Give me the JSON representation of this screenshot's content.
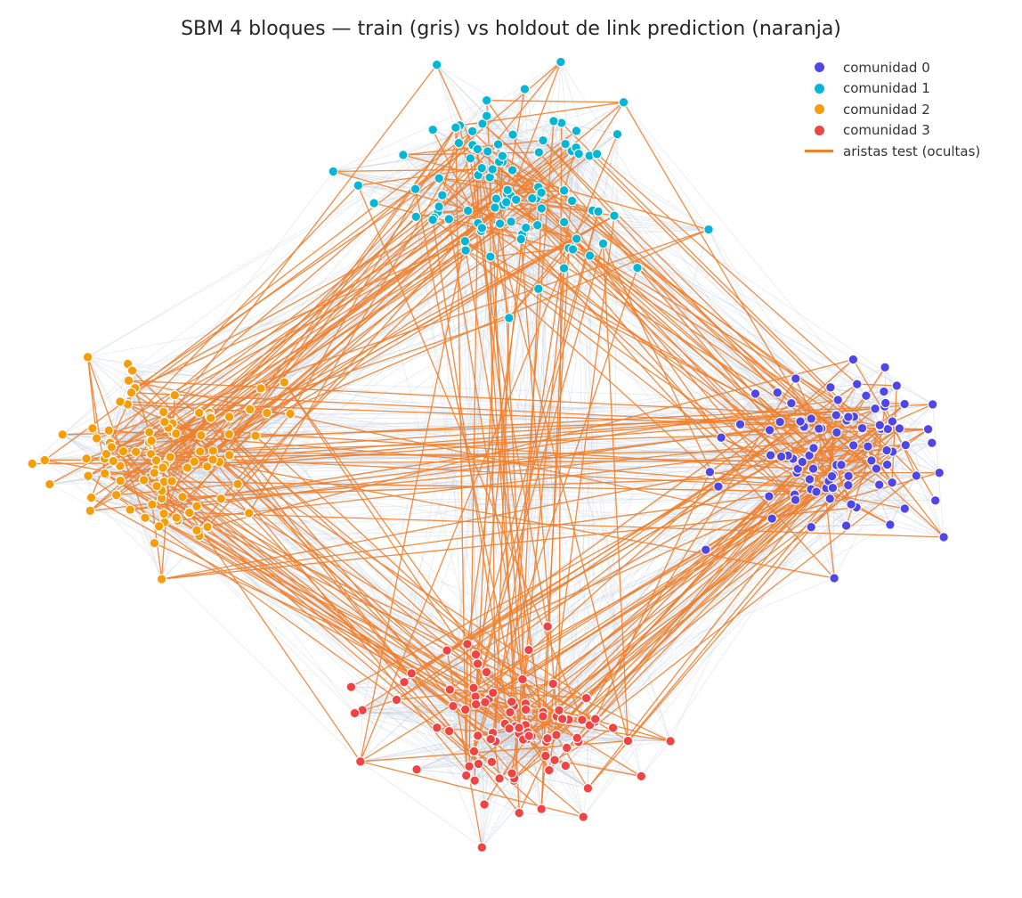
{
  "title": "SBM 4 bloques — train (gris) vs holdout de link prediction (naranja)",
  "colors": {
    "background": "#ffffff",
    "train_edge": "#c8d2e0",
    "test_edge": "#f07f2e",
    "node_stroke": "#ffffff"
  },
  "communities": [
    {
      "id": 0,
      "label": "comunidad 0",
      "color": "#4f46e5",
      "node_count": 92,
      "location": "right"
    },
    {
      "id": 1,
      "label": "comunidad 1",
      "color": "#06b6d4",
      "node_count": 94,
      "location": "top"
    },
    {
      "id": 2,
      "label": "comunidad 2",
      "color": "#f59e0b",
      "node_count": 96,
      "location": "left"
    },
    {
      "id": 3,
      "label": "comunidad 3",
      "color": "#ef4444",
      "node_count": 90,
      "location": "bottom"
    }
  ],
  "legend": {
    "position": "top-right",
    "items": [
      {
        "type": "dot",
        "label": "comunidad 0",
        "color": "#4f46e5"
      },
      {
        "type": "dot",
        "label": "comunidad 1",
        "color": "#06b6d4"
      },
      {
        "type": "dot",
        "label": "comunidad 2",
        "color": "#f59e0b"
      },
      {
        "type": "dot",
        "label": "comunidad 3",
        "color": "#ef4444"
      },
      {
        "type": "line",
        "label": "aristas test (ocultas)",
        "color": "#f07f2e"
      }
    ]
  }
}
